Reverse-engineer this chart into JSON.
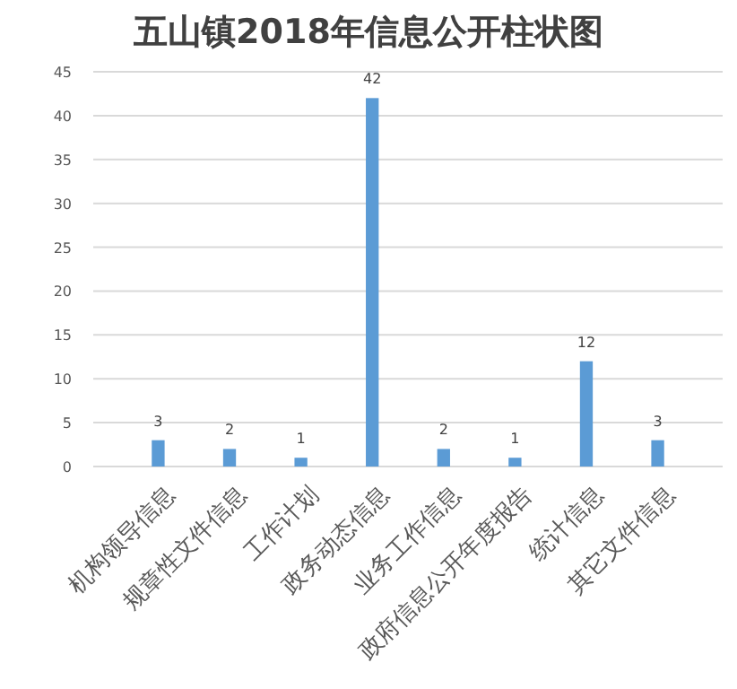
{
  "chart_data": {
    "type": "bar",
    "title": "五山镇2018年信息公开柱状图",
    "categories": [
      "机构领导信息",
      "规章性文件信息",
      "工作计划",
      "政务动态信息",
      "业务工作信息",
      "政府信息公开年度报告",
      "统计信息",
      "其它文件信息"
    ],
    "values": [
      3,
      2,
      1,
      42,
      2,
      1,
      12,
      3
    ],
    "color": "#5b9bd5",
    "ylim": [
      0,
      45
    ],
    "yticks": [
      0,
      5,
      10,
      15,
      20,
      25,
      30,
      35,
      40,
      45
    ],
    "grid": "y",
    "data_labels": true
  }
}
